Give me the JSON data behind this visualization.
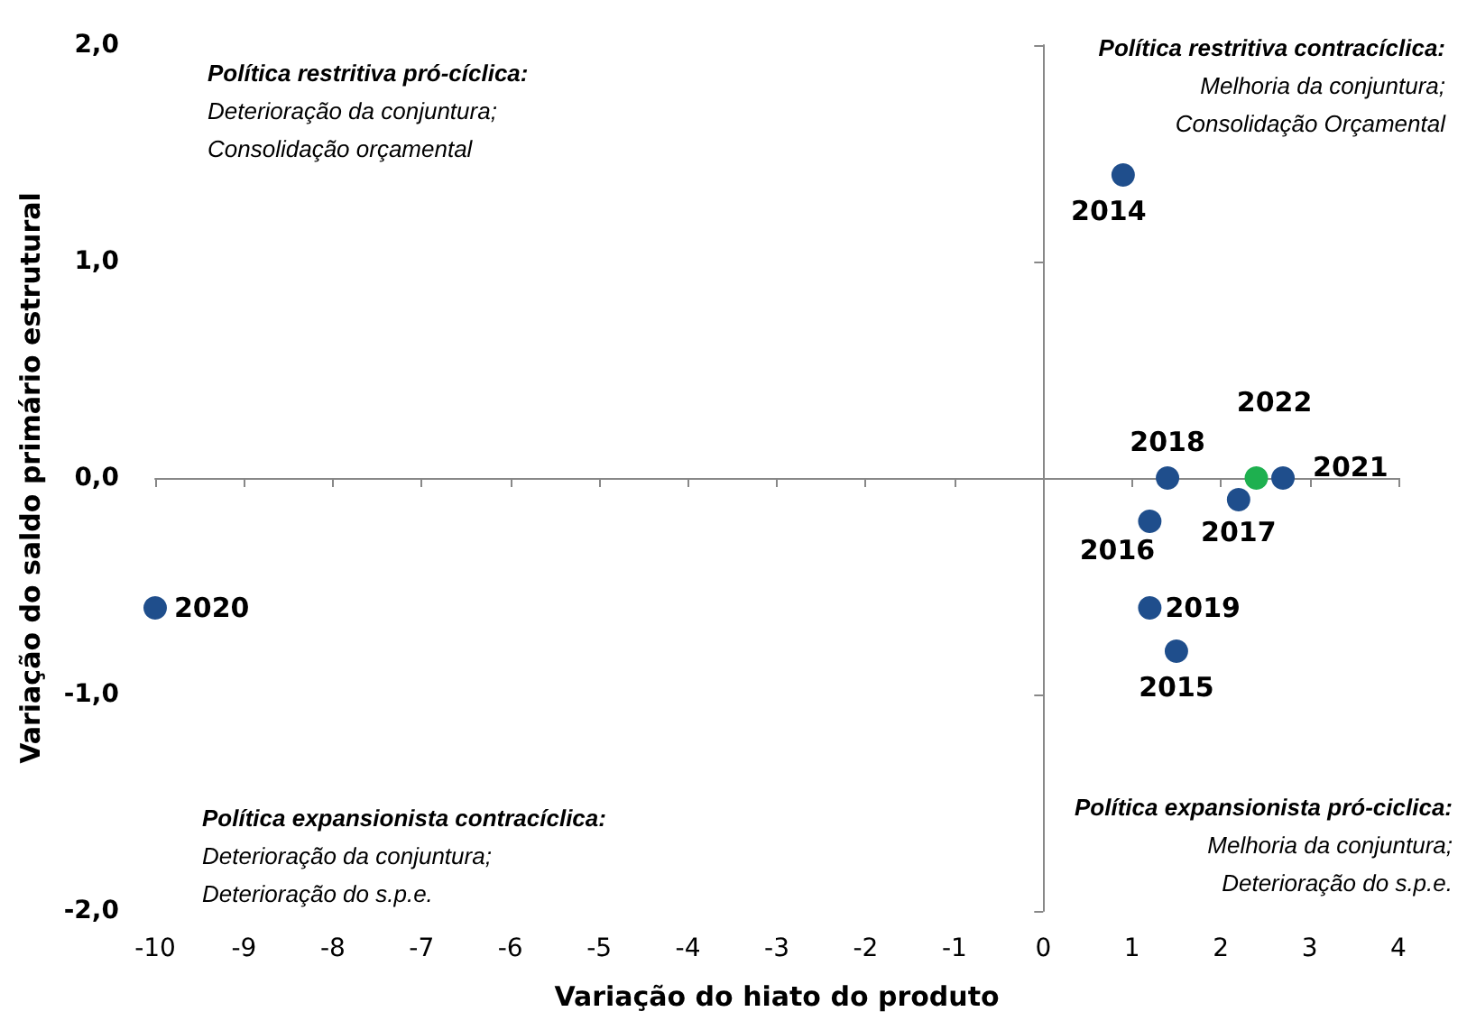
{
  "chart_data": {
    "type": "scatter",
    "xlabel": "Variação do hiato do produto",
    "ylabel": "Variação do saldo primário estrutural",
    "xlim": [
      -10,
      4
    ],
    "xticks": [
      -10,
      -9,
      -8,
      -7,
      -6,
      -5,
      -4,
      -3,
      -2,
      -1,
      0,
      1,
      2,
      3,
      4
    ],
    "ylim": [
      -2,
      2
    ],
    "yticks": [
      {
        "value": -2,
        "label": "-2,0"
      },
      {
        "value": -1,
        "label": "-1,0"
      },
      {
        "value": 0,
        "label": "0,0"
      },
      {
        "value": 1,
        "label": "1,0"
      },
      {
        "value": 2,
        "label": "2,0"
      }
    ],
    "marker": "circle",
    "series": [
      {
        "name": "2014",
        "color": "#1f4e8c",
        "x": [
          0.9
        ],
        "values": [
          1.4
        ]
      },
      {
        "name": "2018",
        "color": "#1f4e8c",
        "x": [
          1.4
        ],
        "values": [
          0.0
        ]
      },
      {
        "name": "2016",
        "color": "#1f4e8c",
        "x": [
          1.2
        ],
        "values": [
          -0.2
        ]
      },
      {
        "name": "2017",
        "color": "#1f4e8c",
        "x": [
          2.2
        ],
        "values": [
          -0.1
        ]
      },
      {
        "name": "2022",
        "color": "#1eb04f",
        "x": [
          2.4
        ],
        "values": [
          0.0
        ]
      },
      {
        "name": "2021",
        "color": "#1f4e8c",
        "x": [
          2.7
        ],
        "values": [
          0.0
        ]
      },
      {
        "name": "2019",
        "color": "#1f4e8c",
        "x": [
          1.2
        ],
        "values": [
          -0.6
        ]
      },
      {
        "name": "2015",
        "color": "#1f4e8c",
        "x": [
          1.5
        ],
        "values": [
          -0.8
        ]
      },
      {
        "name": "2020",
        "color": "#1f4e8c",
        "x": [
          -10
        ],
        "values": [
          -0.6
        ]
      }
    ],
    "annotations": [
      "Política restritiva pró-cíclica:\nDeterioração da conjuntura;\nConsolidação orçamental",
      "Política restritiva contracíclica:\nMelhoria da conjuntura;\nConsolidação Orçamental",
      "Política expansionista contracíclica:\nDeterioração da conjuntura;\nDeterioração do s.p.e.",
      "Política expansionista pró-ciclica:\nMelhoria da conjuntura;\nDeterioração do s.p.e."
    ]
  }
}
